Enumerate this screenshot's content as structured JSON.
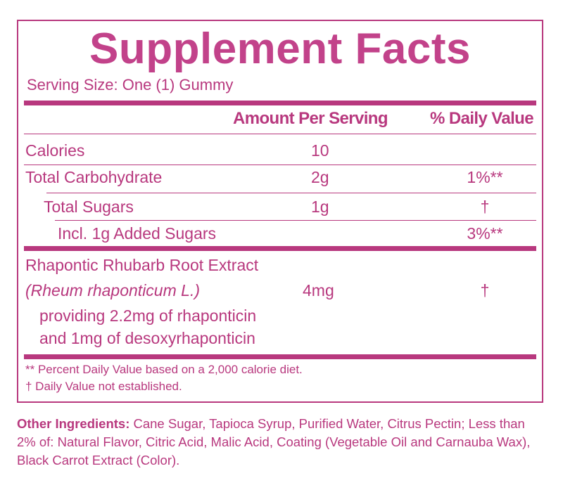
{
  "title": "Supplement Facts",
  "serving_size": "Serving Size: One (1) Gummy",
  "header": {
    "amount": "Amount Per Serving",
    "daily_value": "% Daily Value"
  },
  "rows": [
    {
      "label": "Calories",
      "amount": "10",
      "daily_value": ""
    },
    {
      "label": "Total Carbohydrate",
      "amount": "2g",
      "daily_value": "1%**"
    },
    {
      "label": "Total Sugars",
      "amount": "1g",
      "daily_value": "†"
    },
    {
      "label": "Incl. 1g Added Sugars",
      "amount": "",
      "daily_value": "3%**"
    }
  ],
  "extract": {
    "name": "Rhapontic Rhubarb Root Extract",
    "latin": "(Rheum rhaponticum L.)",
    "amount": "4mg",
    "daily_value": "†",
    "providing_line1": "providing 2.2mg of rhaponticin",
    "providing_line2": "and 1mg of desoxyrhaponticin"
  },
  "footnotes": [
    "** Percent Daily Value based on a 2,000 calorie diet.",
    "† Daily Value not established."
  ],
  "other_ingredients": {
    "label": "Other Ingredients:",
    "text": " Cane Sugar, Tapioca Syrup, Purified Water, Citrus Pectin; Less than 2% of: Natural Flavor, Citric Acid, Malic Acid, Coating (Vegetable Oil and Carnauba Wax), Black Carrot Extract (Color)."
  },
  "colors": {
    "accent": "#b8387e",
    "title": "#c2428a"
  }
}
